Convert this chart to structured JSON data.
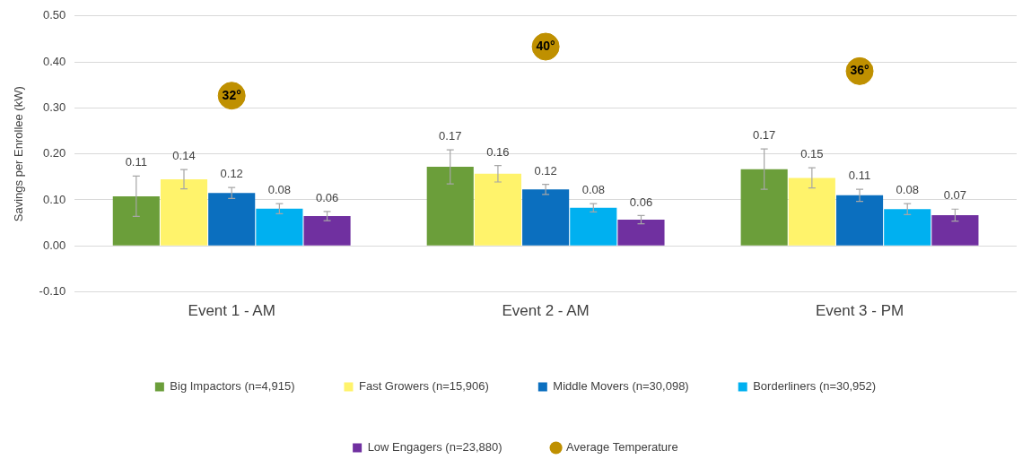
{
  "chart_data": {
    "type": "bar",
    "ylabel": "Savings per Enrollee (kW)",
    "categories": [
      "Event 1 - AM",
      "Event 2 - AM",
      "Event 3 - PM"
    ],
    "series": [
      {
        "name": "Big Impactors (n=4,915)",
        "color": "#6b9e3a",
        "values": [
          0.108,
          0.172,
          0.167
        ],
        "errors": [
          0.044,
          0.037,
          0.044
        ],
        "value_labels": [
          "0.11",
          "0.17",
          "0.17"
        ]
      },
      {
        "name": "Fast Growers (n=15,906)",
        "color": "#fff36b",
        "values": [
          0.145,
          0.157,
          0.148
        ],
        "errors": [
          0.021,
          0.018,
          0.022
        ],
        "value_labels": [
          "0.14",
          "0.16",
          "0.15"
        ]
      },
      {
        "name": "Middle Movers (n=30,098)",
        "color": "#0b6fbf",
        "values": [
          0.115,
          0.123,
          0.11
        ],
        "errors": [
          0.012,
          0.011,
          0.013
        ],
        "value_labels": [
          "0.12",
          "0.12",
          "0.11"
        ]
      },
      {
        "name": "Borderliners (n=30,952)",
        "color": "#00b0f0",
        "values": [
          0.081,
          0.083,
          0.08
        ],
        "errors": [
          0.011,
          0.009,
          0.012
        ],
        "value_labels": [
          "0.08",
          "0.08",
          "0.08"
        ]
      },
      {
        "name": "Low Engagers (n=23,880)",
        "color": "#7030a0",
        "values": [
          0.065,
          0.057,
          0.067
        ],
        "errors": [
          0.01,
          0.009,
          0.013
        ],
        "value_labels": [
          "0.06",
          "0.06",
          "0.07"
        ]
      },
      {
        "name": "Average Temperature",
        "type": "scatter",
        "axis": "y2",
        "color": "#bf9000",
        "x": [
          "Event 1 - AM",
          "Event 2 - AM",
          "Event 3 - PM"
        ],
        "values": [
          32,
          40,
          36
        ],
        "value_labels": [
          "32°",
          "40°",
          "36°"
        ]
      }
    ],
    "ylim": [
      -0.1,
      0.5
    ],
    "yticks": [
      {
        "value": -0.1,
        "label": "-0.10"
      },
      {
        "value": 0,
        "label": "0.00"
      },
      {
        "value": 0.1,
        "label": "0.10"
      },
      {
        "value": 0.2,
        "label": "0.20"
      },
      {
        "value": 0.3,
        "label": "0.30"
      },
      {
        "value": 0.4,
        "label": "0.40"
      },
      {
        "value": 0.5,
        "label": "0.50"
      }
    ],
    "y2lim": [
      0,
      45
    ],
    "grid": "y",
    "legend": "bottom",
    "marker": "circle"
  }
}
